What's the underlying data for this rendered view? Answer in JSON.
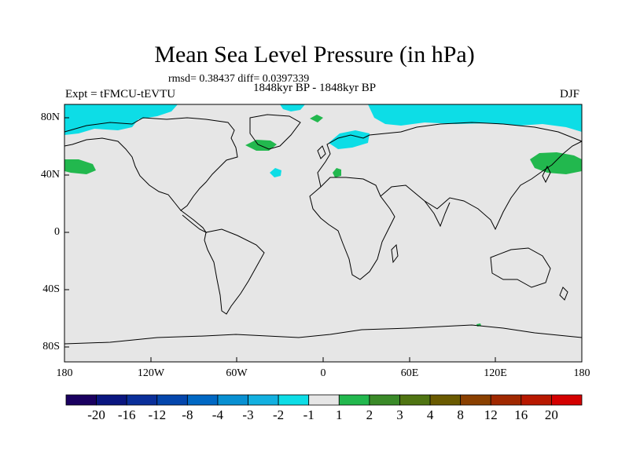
{
  "title": "Mean Sea Level Pressure (in hPa)",
  "stats_text": "rmsd= 0.38437 diff= 0.0397339",
  "period_text": "1848kyr BP - 1848kyr BP",
  "experiment_text": "Expt = tFMCU-tEVTU",
  "season_text": "DJF",
  "y_axis_labels": [
    "80N",
    "40N",
    "0",
    "40S",
    "80S"
  ],
  "x_axis_labels": [
    "180",
    "120W",
    "60W",
    "0",
    "60E",
    "120E",
    "180"
  ],
  "colorbar": {
    "labels": [
      "-20",
      "-16",
      "-12",
      "-8",
      "-4",
      "-3",
      "-2",
      "-1",
      "1",
      "2",
      "3",
      "4",
      "8",
      "12",
      "16",
      "20"
    ],
    "colors": [
      "#1a0060",
      "#0a1680",
      "#0a2f9a",
      "#0446ac",
      "#0068c4",
      "#0890d2",
      "#12b0e0",
      "#0ddde6",
      "#e6e6e6",
      "#22b84e",
      "#3a8a28",
      "#4f7412",
      "#6a5a00",
      "#8a4000",
      "#a02800",
      "#b81800",
      "#d40000"
    ]
  },
  "colors": {
    "ocean_neutral": "#e6e6e6",
    "negative_region": "#0ddde6",
    "positive_region": "#22b84e",
    "coastline": "#000000"
  }
}
